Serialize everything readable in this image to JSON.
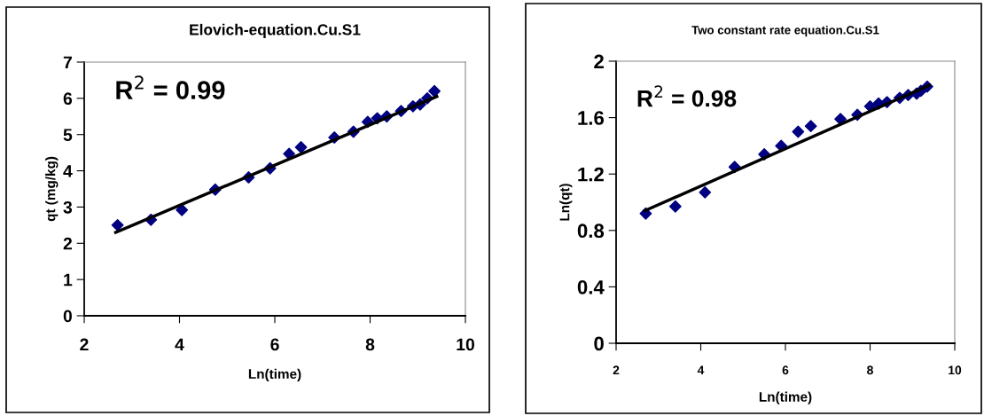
{
  "chart_data": [
    {
      "type": "scatter",
      "title": "Elovich-equation.Cu.S1",
      "xlabel": "Ln(time)",
      "ylabel": "qt (mg/kg)",
      "xlim": [
        2,
        10
      ],
      "xticks": [
        2,
        4,
        6,
        8,
        10
      ],
      "ylim": [
        0,
        7
      ],
      "yticks": [
        0,
        1,
        2,
        3,
        4,
        5,
        6,
        7
      ],
      "marker": "diamond",
      "grid": false,
      "legend": false,
      "annotations": [
        "R$^{2}$ = 0.99"
      ],
      "x": [
        2.7,
        3.4,
        4.05,
        4.75,
        5.45,
        5.9,
        6.3,
        6.55,
        7.25,
        7.65,
        7.95,
        8.15,
        8.35,
        8.65,
        8.9,
        9.05,
        9.2,
        9.35
      ],
      "series": [
        {
          "color": "#000080",
          "values": [
            2.5,
            2.65,
            2.92,
            3.48,
            3.82,
            4.07,
            4.47,
            4.65,
            4.92,
            5.08,
            5.35,
            5.45,
            5.5,
            5.65,
            5.78,
            5.83,
            6.0,
            6.2
          ]
        },
        {
          "type": "line",
          "color": "#000000",
          "x": [
            2.66,
            9.4
          ],
          "values": [
            2.3,
            6.05
          ],
          "marker": "none"
        }
      ]
    },
    {
      "type": "scatter",
      "title": "Two constant rate equation.Cu.S1",
      "xlabel": "Ln(time)",
      "ylabel": "Ln(qt)",
      "xlim": [
        2,
        10
      ],
      "xticks": [
        2,
        4,
        6,
        8,
        10
      ],
      "ylim": [
        0,
        2
      ],
      "yticks": [
        0,
        0.4,
        0.8,
        1.2,
        1.6,
        2
      ],
      "marker": "diamond",
      "grid": false,
      "legend": false,
      "annotations": [
        "R$^{2}$ = 0.98"
      ],
      "x": [
        2.7,
        3.4,
        4.1,
        4.8,
        5.5,
        5.9,
        6.3,
        6.6,
        7.3,
        7.7,
        8.0,
        8.2,
        8.4,
        8.7,
        8.9,
        9.1,
        9.2,
        9.35
      ],
      "series": [
        {
          "color": "#000080",
          "values": [
            0.92,
            0.97,
            1.07,
            1.25,
            1.34,
            1.4,
            1.5,
            1.54,
            1.59,
            1.62,
            1.68,
            1.7,
            1.71,
            1.74,
            1.76,
            1.77,
            1.79,
            1.82
          ]
        },
        {
          "type": "line",
          "color": "#000000",
          "x": [
            2.68,
            9.4
          ],
          "values": [
            0.94,
            1.83
          ],
          "marker": "none"
        }
      ]
    }
  ]
}
